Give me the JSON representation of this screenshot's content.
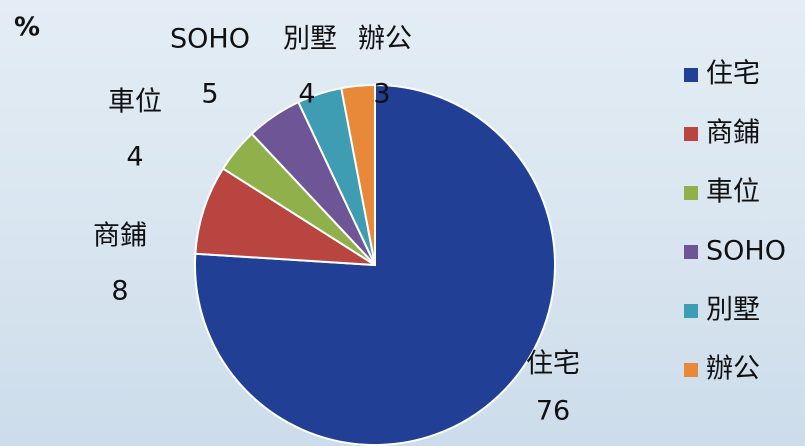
{
  "chart_data": {
    "type": "pie",
    "title": "%",
    "categories": [
      "住宅",
      "商鋪",
      "車位",
      "SOHO",
      "別墅",
      "辦公"
    ],
    "values": [
      76,
      8,
      4,
      5,
      4,
      3
    ],
    "colors": [
      "#203f95",
      "#b8453f",
      "#8fb04a",
      "#6e5596",
      "#3e9cb3",
      "#e8893a"
    ],
    "legend": "right",
    "start": "top",
    "direction": "clockwise"
  }
}
